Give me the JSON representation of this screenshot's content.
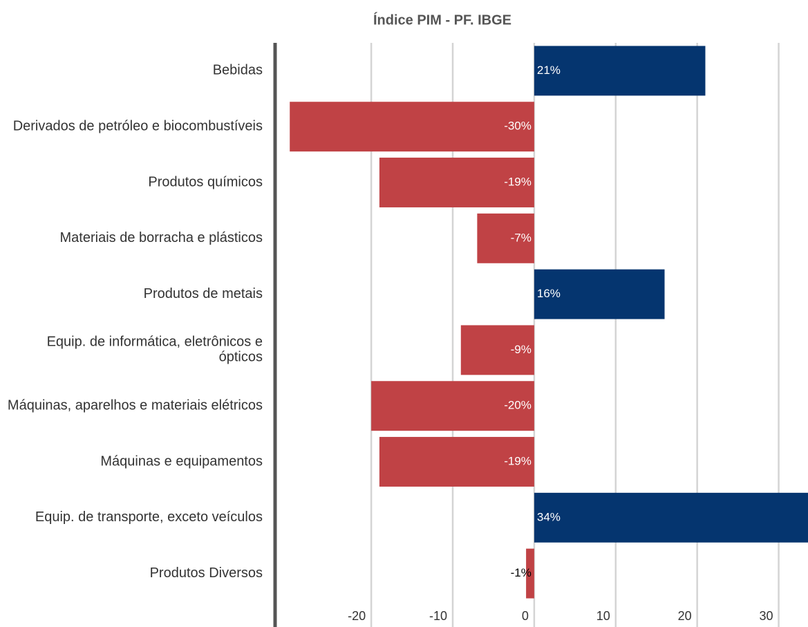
{
  "chart_data": {
    "type": "barh",
    "subtitle": "Índice PIM - PF. IBGE",
    "categories": [
      "Bebidas",
      "Derivados de petróleo e biocombustíveis",
      "Produtos químicos",
      "Materiais de borracha e plásticos",
      "Produtos de metais",
      "Equip. de informática, eletrônicos e ópticos",
      "Máquinas, aparelhos e materiais elétricos",
      "Máquinas e equipamentos",
      "Equip. de transporte, exceto veículos",
      "Produtos Diversos"
    ],
    "values": [
      21,
      -30,
      -19,
      -7,
      16,
      -9,
      -20,
      -19,
      34,
      -1
    ],
    "value_labels": [
      "21%",
      "-30%",
      "-19%",
      "-7%",
      "16%",
      "-9%",
      "-20%",
      "-19%",
      "34%",
      "-1%"
    ],
    "positive_color": "#05356f",
    "negative_color": "#c04245",
    "xlim": [
      -31.8,
      33.6
    ],
    "xticks": [
      -20,
      -10,
      0,
      10,
      20,
      30
    ],
    "grid": true
  }
}
